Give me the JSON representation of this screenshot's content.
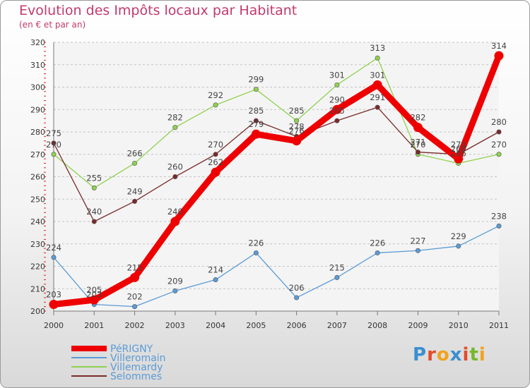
{
  "title": "Evolution des Impôts locaux par Habitant",
  "subtitle": "(en € et par an)",
  "brand": {
    "text": "Proxiti",
    "colors": [
      "#3a8fd0",
      "#e64b2a",
      "#f2a21b",
      "#3a8fd0",
      "#e64b2a",
      "#76b82a",
      "#f2a21b"
    ]
  },
  "chart_data": {
    "type": "line",
    "title": "Evolution des Impôts locaux par Habitant",
    "subtitle": "(en € et par an)",
    "categories": [
      "2000",
      "2001",
      "2002",
      "2003",
      "2004",
      "2005",
      "2006",
      "2007",
      "2008",
      "2009",
      "2010",
      "2011"
    ],
    "ylim": [
      200,
      320
    ],
    "yticks": [
      200,
      210,
      220,
      230,
      240,
      250,
      260,
      270,
      280,
      290,
      300,
      310,
      320
    ],
    "grid": "horizontal dashed",
    "legend_position": "bottom-left",
    "series": [
      {
        "name": "Villeromain",
        "color": "#5b9bd5",
        "values": [
          224,
          203,
          202,
          209,
          214,
          226,
          206,
          215,
          226,
          227,
          229,
          238
        ]
      },
      {
        "name": "Villemardy",
        "color": "#8fd14f",
        "values": [
          270,
          255,
          266,
          282,
          292,
          299,
          285,
          301,
          313,
          270,
          266,
          270
        ]
      },
      {
        "name": "Selommes",
        "color": "#7a2a2a",
        "values": [
          275,
          240,
          249,
          260,
          270,
          285,
          278,
          285,
          291,
          271,
          270,
          280
        ]
      },
      {
        "name": "PéRIGNY",
        "color": "#ee0000",
        "values": [
          203,
          205,
          215,
          240,
          262,
          279,
          276,
          290,
          301,
          282,
          268,
          314
        ]
      }
    ],
    "legend_order": [
      "PéRIGNY",
      "Villeromain",
      "Villemardy",
      "Selommes"
    ]
  }
}
